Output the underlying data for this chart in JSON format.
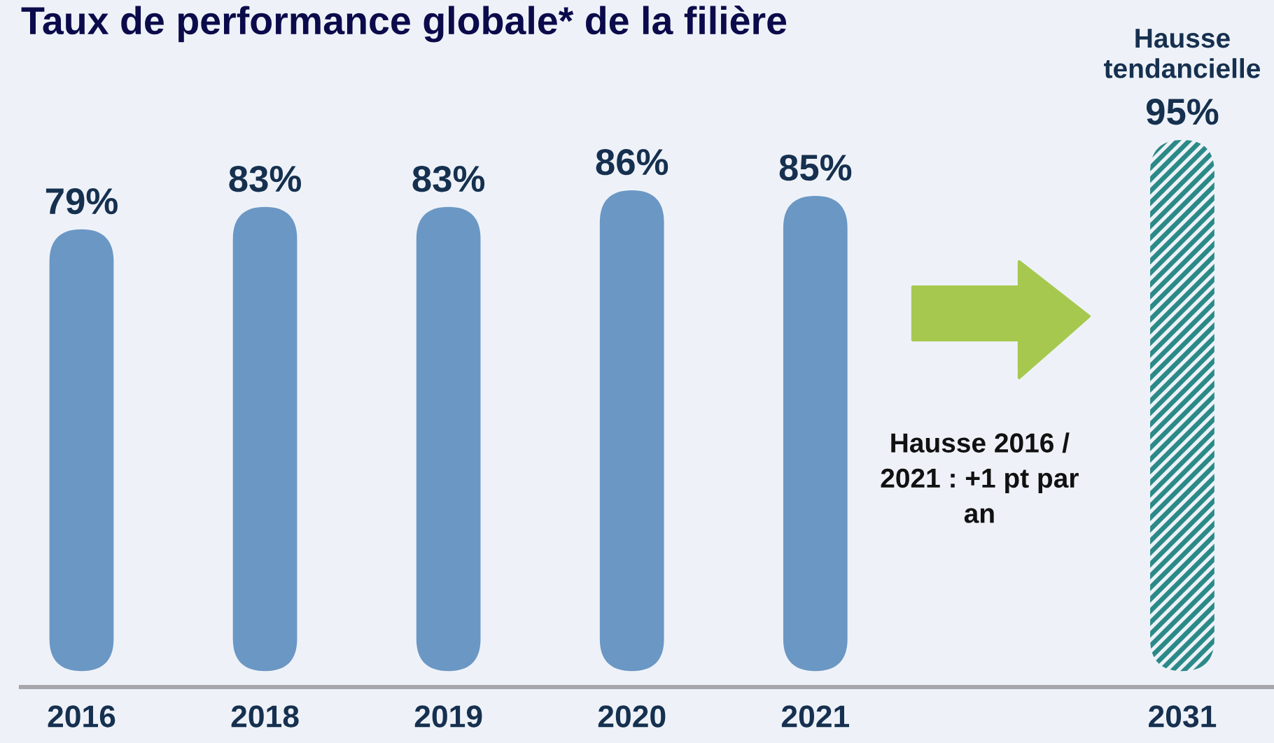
{
  "chart_data": {
    "type": "bar",
    "title": "Taux de performance globale* de la filière",
    "categories": [
      "2016",
      "2018",
      "2019",
      "2020",
      "2021",
      null,
      "2031"
    ],
    "series": [
      {
        "color": "#6b97c4",
        "values": [
          79,
          83,
          83,
          86,
          85,
          null,
          null
        ],
        "value_labels": [
          "79%",
          "83%",
          "83%",
          "86%",
          "85%",
          null,
          null
        ]
      },
      {
        "name": "Hausse tendancielle",
        "color": "#2b8a88",
        "values": [
          null,
          null,
          null,
          null,
          null,
          null,
          95
        ],
        "value_labels": [
          null,
          null,
          null,
          null,
          null,
          null,
          "95%"
        ]
      }
    ],
    "annotations": [
      "Hausse 2016 / 2021 : +1 pt par an"
    ],
    "tick_labels": "x"
  }
}
